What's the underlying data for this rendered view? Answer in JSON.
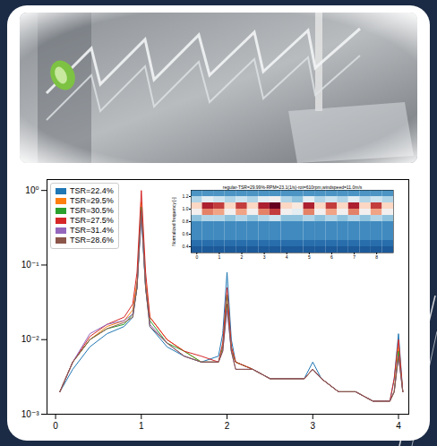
{
  "chart_data": [
    {
      "type": "line",
      "log": "y",
      "grid": false,
      "legend": "upper left",
      "x": [
        0.05,
        0.2,
        0.4,
        0.6,
        0.8,
        0.9,
        0.95,
        1.0,
        1.05,
        1.1,
        1.3,
        1.5,
        1.7,
        1.9,
        1.95,
        2.0,
        2.05,
        2.1,
        2.3,
        2.5,
        2.7,
        2.9,
        3.0,
        3.1,
        3.3,
        3.5,
        3.7,
        3.9,
        3.95,
        4.0,
        4.05
      ],
      "series": [
        {
          "name": "TSR=22.4%",
          "color": "#1f77b4",
          "values": [
            0.002,
            0.004,
            0.008,
            0.012,
            0.015,
            0.02,
            0.05,
            0.45,
            0.05,
            0.015,
            0.008,
            0.006,
            0.005,
            0.006,
            0.012,
            0.08,
            0.01,
            0.005,
            0.004,
            0.003,
            0.003,
            0.003,
            0.005,
            0.003,
            0.002,
            0.002,
            0.0015,
            0.0015,
            0.003,
            0.012,
            0.002
          ]
        },
        {
          "name": "TSR=29.5%",
          "color": "#ff7f0e",
          "values": [
            0.002,
            0.005,
            0.01,
            0.015,
            0.018,
            0.025,
            0.06,
            0.7,
            0.06,
            0.02,
            0.01,
            0.007,
            0.005,
            0.005,
            0.008,
            0.03,
            0.008,
            0.005,
            0.004,
            0.003,
            0.003,
            0.003,
            0.004,
            0.003,
            0.002,
            0.002,
            0.0015,
            0.0015,
            0.002,
            0.008,
            0.002
          ]
        },
        {
          "name": "TSR=30.5%",
          "color": "#2ca02c",
          "values": [
            0.002,
            0.005,
            0.01,
            0.014,
            0.016,
            0.022,
            0.05,
            0.6,
            0.05,
            0.018,
            0.009,
            0.007,
            0.005,
            0.005,
            0.008,
            0.04,
            0.007,
            0.005,
            0.004,
            0.003,
            0.003,
            0.003,
            0.004,
            0.003,
            0.002,
            0.002,
            0.0015,
            0.0015,
            0.002,
            0.007,
            0.002
          ]
        },
        {
          "name": "TSR=27.5%",
          "color": "#d62728",
          "values": [
            0.002,
            0.005,
            0.011,
            0.016,
            0.02,
            0.03,
            0.08,
            1.0,
            0.08,
            0.02,
            0.01,
            0.007,
            0.006,
            0.005,
            0.009,
            0.05,
            0.008,
            0.005,
            0.004,
            0.003,
            0.003,
            0.003,
            0.004,
            0.003,
            0.002,
            0.002,
            0.0015,
            0.0015,
            0.003,
            0.01,
            0.002
          ]
        },
        {
          "name": "TSR=31.4%",
          "color": "#9467bd",
          "values": [
            0.002,
            0.005,
            0.012,
            0.016,
            0.018,
            0.022,
            0.05,
            0.5,
            0.05,
            0.016,
            0.009,
            0.006,
            0.005,
            0.005,
            0.007,
            0.025,
            0.007,
            0.004,
            0.004,
            0.003,
            0.003,
            0.003,
            0.004,
            0.003,
            0.002,
            0.002,
            0.0015,
            0.0015,
            0.002,
            0.006,
            0.002
          ]
        },
        {
          "name": "TSR=28.6%",
          "color": "#8c564b",
          "values": [
            0.002,
            0.005,
            0.01,
            0.014,
            0.017,
            0.02,
            0.05,
            0.55,
            0.05,
            0.015,
            0.009,
            0.006,
            0.005,
            0.005,
            0.007,
            0.03,
            0.007,
            0.004,
            0.004,
            0.003,
            0.003,
            0.003,
            0.004,
            0.003,
            0.002,
            0.002,
            0.0015,
            0.0015,
            0.002,
            0.006,
            0.002
          ]
        }
      ],
      "xlim": [
        -0.1,
        4.12
      ],
      "xticks": [
        0,
        1,
        2,
        3,
        4
      ],
      "ylim": [
        0.001,
        1.4
      ],
      "yticks": [
        {
          "value": 1,
          "label": "10⁰"
        },
        {
          "value": 0.1,
          "label": "10⁻¹"
        },
        {
          "value": 0.01,
          "label": "10⁻²"
        },
        {
          "value": 0.001,
          "label": "10⁻³"
        }
      ]
    },
    {
      "type": "heatmap",
      "title": "regular-TSR=29.99%-RPM=23.1(1/s)-rot=610rpm,windspeed=11.0m/s",
      "y_label": "Normalized frequency [-]",
      "color": "RdBu",
      "x": [
        0,
        0.5,
        1,
        1.5,
        2,
        2.5,
        3,
        3.5,
        4,
        4.5,
        5,
        5.5,
        6,
        6.5,
        7,
        7.5,
        8,
        8.5
      ],
      "y": [
        0.35,
        0.45,
        0.55,
        0.65,
        0.75,
        0.85,
        0.95,
        1.05,
        1.15,
        1.25
      ],
      "cells": [
        [
          0.08,
          0.08,
          0.08,
          0.08,
          0.08,
          0.08,
          0.08,
          0.08,
          0.08,
          0.08,
          0.08,
          0.08,
          0.08,
          0.08,
          0.08,
          0.08,
          0.08,
          0.08
        ],
        [
          0.12,
          0.12,
          0.12,
          0.12,
          0.12,
          0.12,
          0.12,
          0.12,
          0.12,
          0.12,
          0.12,
          0.12,
          0.12,
          0.12,
          0.12,
          0.12,
          0.12,
          0.12
        ],
        [
          0.18,
          0.18,
          0.18,
          0.18,
          0.18,
          0.18,
          0.18,
          0.18,
          0.18,
          0.18,
          0.18,
          0.18,
          0.18,
          0.18,
          0.18,
          0.18,
          0.18,
          0.18
        ],
        [
          0.18,
          0.18,
          0.18,
          0.18,
          0.18,
          0.18,
          0.18,
          0.18,
          0.18,
          0.18,
          0.18,
          0.18,
          0.18,
          0.18,
          0.18,
          0.18,
          0.18,
          0.18
        ],
        [
          0.18,
          0.18,
          0.18,
          0.18,
          0.18,
          0.18,
          0.18,
          0.18,
          0.18,
          0.18,
          0.18,
          0.18,
          0.18,
          0.18,
          0.18,
          0.18,
          0.18,
          0.18
        ],
        [
          0.3,
          0.35,
          0.35,
          0.3,
          0.35,
          0.3,
          0.35,
          0.4,
          0.3,
          0.3,
          0.35,
          0.3,
          0.35,
          0.3,
          0.35,
          0.3,
          0.35,
          0.3
        ],
        [
          0.5,
          0.75,
          0.7,
          0.5,
          0.7,
          0.5,
          0.75,
          0.85,
          0.5,
          0.45,
          0.75,
          0.5,
          0.7,
          0.5,
          0.75,
          0.5,
          0.7,
          0.5
        ],
        [
          0.6,
          0.9,
          0.85,
          0.6,
          0.85,
          0.6,
          0.9,
          1.0,
          0.6,
          0.55,
          0.9,
          0.6,
          0.85,
          0.6,
          0.9,
          0.6,
          0.85,
          0.6
        ],
        [
          0.35,
          0.45,
          0.4,
          0.35,
          0.4,
          0.35,
          0.45,
          0.5,
          0.35,
          0.3,
          0.45,
          0.35,
          0.4,
          0.35,
          0.45,
          0.35,
          0.4,
          0.35
        ],
        [
          0.2,
          0.2,
          0.2,
          0.2,
          0.2,
          0.2,
          0.2,
          0.2,
          0.2,
          0.2,
          0.2,
          0.2,
          0.2,
          0.2,
          0.2,
          0.2,
          0.2,
          0.2
        ]
      ],
      "zlim": [
        0,
        1
      ],
      "xlim": [
        -0.25,
        8.75
      ],
      "xticks": [
        0,
        1,
        2,
        3,
        4,
        5,
        6,
        7,
        8
      ],
      "ylim": [
        0.3,
        1.3
      ],
      "yticks": [
        0.4,
        0.6,
        0.8,
        {
          "value": 1,
          "label": "1.0"
        },
        1.2
      ]
    }
  ]
}
